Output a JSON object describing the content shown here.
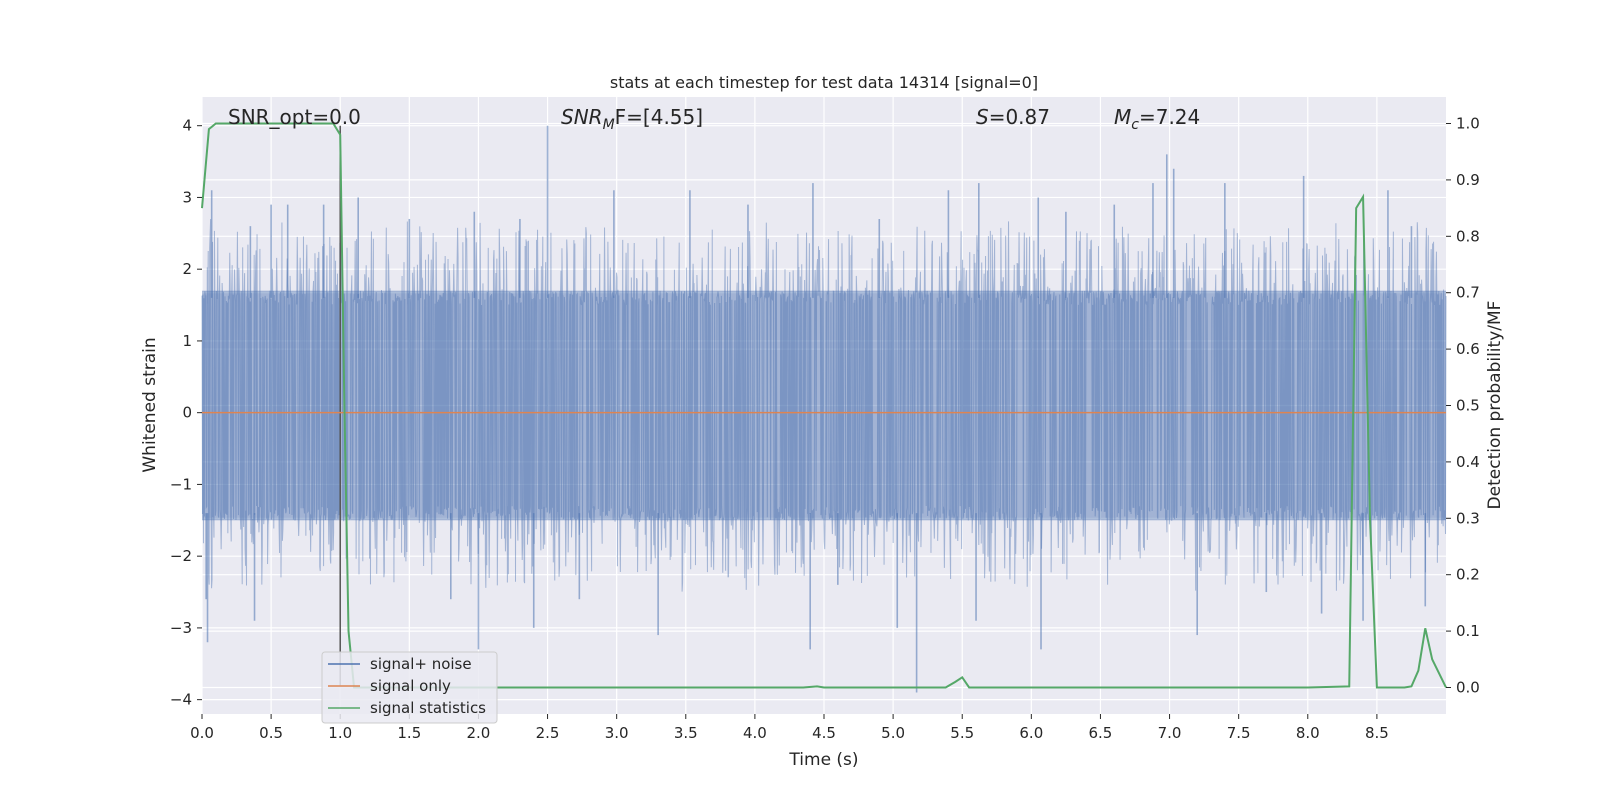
{
  "chart_data": {
    "type": "line",
    "title": "stats at each timestep for test data 14314 [signal=0]",
    "xlabel": "Time (s)",
    "ylabel": "Whitened strain",
    "y2label": "Detection probability/MF",
    "xlim": [
      0.0,
      9.0
    ],
    "ylim": [
      -4.2,
      4.4
    ],
    "y2lim": [
      -0.047,
      1.047
    ],
    "xticks": [
      "0.0",
      "0.5",
      "1.0",
      "1.5",
      "2.0",
      "2.5",
      "3.0",
      "3.5",
      "4.0",
      "4.5",
      "5.0",
      "5.5",
      "6.0",
      "6.5",
      "7.0",
      "7.5",
      "8.0",
      "8.5"
    ],
    "yticks": [
      "4",
      "3",
      "2",
      "1",
      "0",
      "−1",
      "−2",
      "−3",
      "−4"
    ],
    "y2ticks": [
      "1.0",
      "0.9",
      "0.8",
      "0.7",
      "0.6",
      "0.5",
      "0.4",
      "0.3",
      "0.2",
      "0.1",
      "0.0"
    ],
    "grid": true,
    "legend_position": "lower-left",
    "annotations": {
      "snr_opt": "SNR_opt=0.0",
      "snr_mf_name": "SNR",
      "snr_mf_sub": "M",
      "snr_mf_rest": "F=[4.55]",
      "s_name": "S",
      "s_rest": "=0.87",
      "mc_name": "M",
      "mc_sub": "c",
      "mc_rest": "=7.24"
    },
    "vertical_marker_x": 1.0,
    "noise_band": {
      "low": -1.5,
      "high": 1.7
    },
    "noise_peaks": [
      {
        "x": 0.03,
        "y": -2.6
      },
      {
        "x": 0.04,
        "y": -3.2
      },
      {
        "x": 0.07,
        "y": 3.1
      },
      {
        "x": 0.35,
        "y": 2.6
      },
      {
        "x": 0.38,
        "y": -2.9
      },
      {
        "x": 0.5,
        "y": 2.9
      },
      {
        "x": 0.62,
        "y": 2.9
      },
      {
        "x": 0.88,
        "y": 2.9
      },
      {
        "x": 1.13,
        "y": 3.0
      },
      {
        "x": 1.5,
        "y": 2.7
      },
      {
        "x": 1.8,
        "y": -2.6
      },
      {
        "x": 1.97,
        "y": 2.8
      },
      {
        "x": 2.0,
        "y": -3.3
      },
      {
        "x": 2.3,
        "y": 2.7
      },
      {
        "x": 2.4,
        "y": -3.0
      },
      {
        "x": 2.5,
        "y": 4.0
      },
      {
        "x": 2.73,
        "y": -2.6
      },
      {
        "x": 2.98,
        "y": 3.1
      },
      {
        "x": 3.3,
        "y": -3.1
      },
      {
        "x": 3.53,
        "y": 3.1
      },
      {
        "x": 3.95,
        "y": 2.9
      },
      {
        "x": 4.42,
        "y": 3.2
      },
      {
        "x": 4.4,
        "y": -3.3
      },
      {
        "x": 4.6,
        "y": -2.4
      },
      {
        "x": 4.9,
        "y": 2.7
      },
      {
        "x": 5.03,
        "y": -3.0
      },
      {
        "x": 5.17,
        "y": -3.9
      },
      {
        "x": 5.4,
        "y": 3.1
      },
      {
        "x": 5.62,
        "y": 3.2
      },
      {
        "x": 5.6,
        "y": -2.9
      },
      {
        "x": 6.05,
        "y": 3.0
      },
      {
        "x": 6.07,
        "y": -3.3
      },
      {
        "x": 6.25,
        "y": 2.8
      },
      {
        "x": 6.6,
        "y": 2.9
      },
      {
        "x": 6.88,
        "y": 3.2
      },
      {
        "x": 6.98,
        "y": 3.6
      },
      {
        "x": 7.03,
        "y": 3.4
      },
      {
        "x": 7.2,
        "y": -3.1
      },
      {
        "x": 7.4,
        "y": 3.2
      },
      {
        "x": 7.7,
        "y": -2.5
      },
      {
        "x": 7.97,
        "y": 3.3
      },
      {
        "x": 8.1,
        "y": -2.8
      },
      {
        "x": 8.4,
        "y": -2.9
      },
      {
        "x": 8.58,
        "y": 3.1
      },
      {
        "x": 8.75,
        "y": 2.6
      },
      {
        "x": 8.85,
        "y": -2.7
      }
    ],
    "series": [
      {
        "name": "signal+ noise",
        "color": "#4c72b0",
        "axis": "left",
        "style": "dense-noise"
      },
      {
        "name": "signal only",
        "color": "#dd8452",
        "axis": "left",
        "x": [
          0.0,
          9.0
        ],
        "y": [
          0.0,
          0.0
        ]
      },
      {
        "name": "signal statistics",
        "color": "#55a868",
        "axis": "right",
        "x": [
          0.0,
          0.05,
          0.1,
          0.2,
          0.4,
          0.6,
          0.8,
          0.95,
          1.0,
          1.03,
          1.06,
          1.1,
          1.2,
          2.0,
          3.0,
          4.0,
          4.35,
          4.45,
          4.5,
          5.0,
          5.38,
          5.45,
          5.5,
          5.55,
          6.0,
          7.0,
          8.0,
          8.3,
          8.35,
          8.4,
          8.45,
          8.5,
          8.55,
          8.7,
          8.75,
          8.8,
          8.85,
          8.9,
          9.0
        ],
        "y": [
          0.85,
          0.99,
          1.0,
          1.0,
          1.0,
          1.0,
          1.0,
          1.0,
          0.98,
          0.5,
          0.1,
          0.0,
          0.0,
          0.0,
          0.0,
          0.0,
          0.0,
          0.002,
          0.0,
          0.0,
          0.0,
          0.01,
          0.018,
          0.0,
          0.0,
          0.0,
          0.0,
          0.002,
          0.85,
          0.87,
          0.3,
          0.0,
          0.0,
          0.0,
          0.002,
          0.03,
          0.105,
          0.05,
          0.0
        ]
      }
    ]
  }
}
